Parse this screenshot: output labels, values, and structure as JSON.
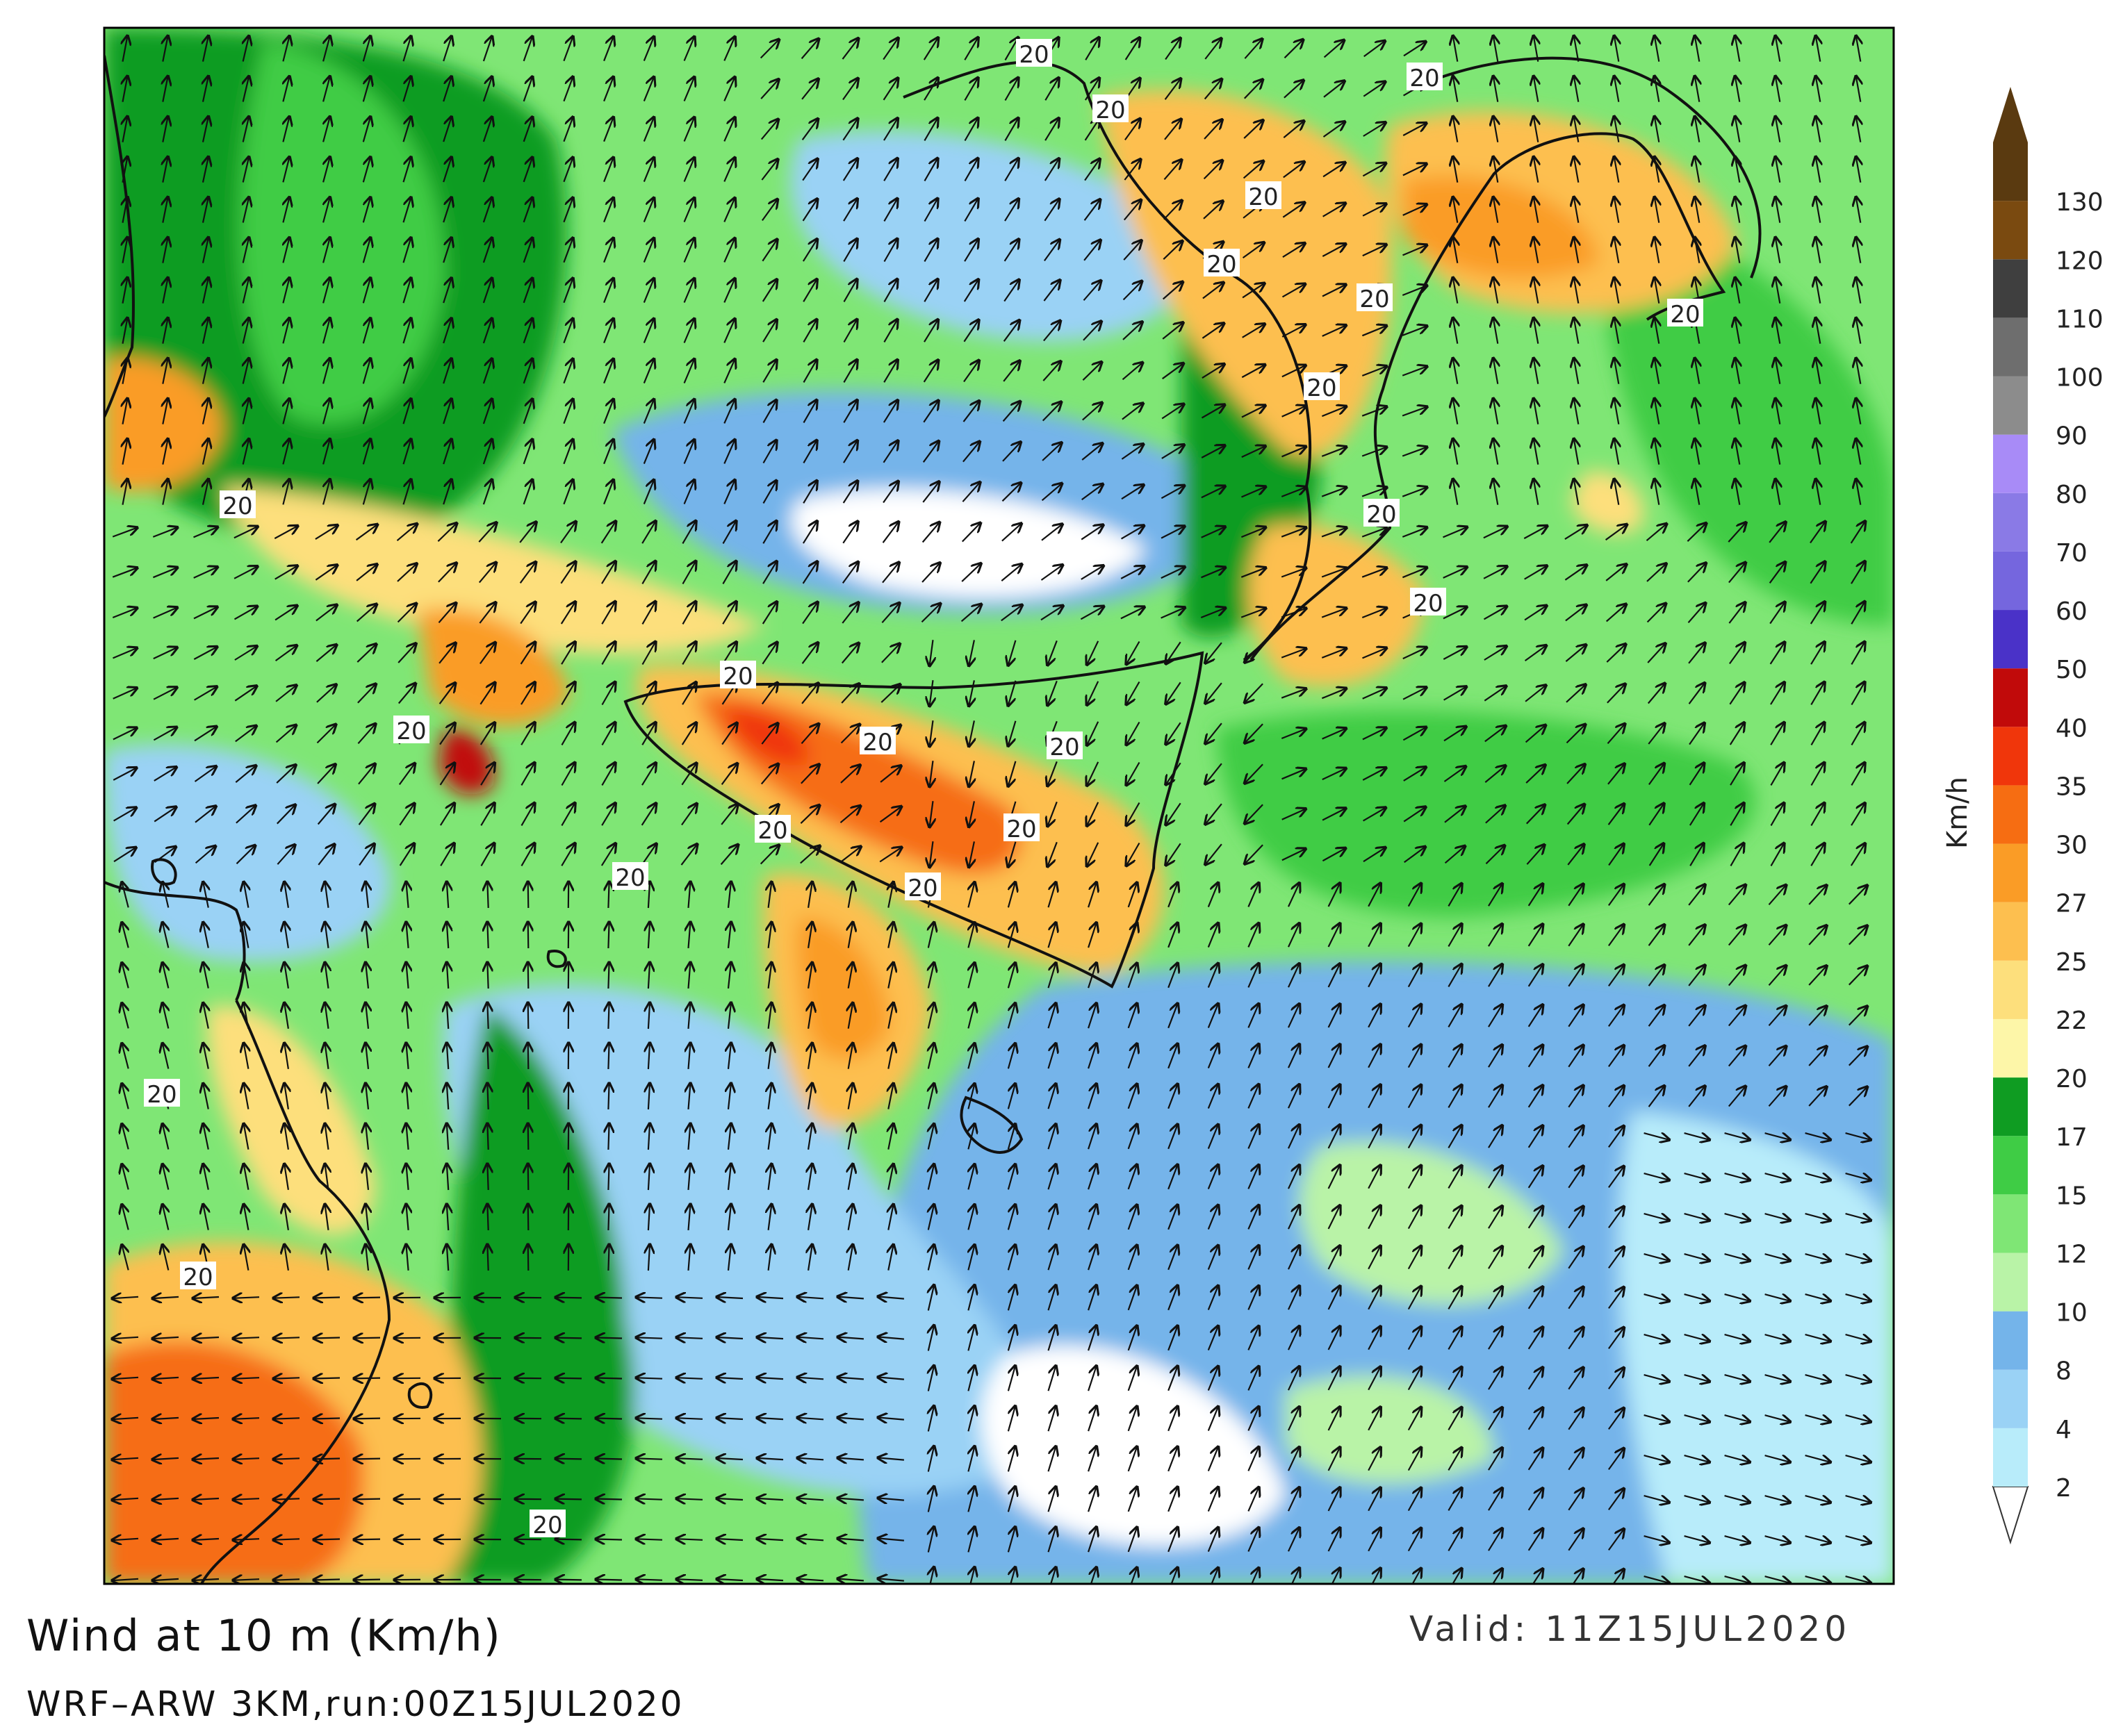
{
  "title": "Wind at 10  m  (Km/h)",
  "valid": "Valid:  11Z15JUL2020",
  "model": "WRF–ARW  3KM,run:00Z15JUL2020",
  "colorbar": {
    "unit": "Km/h",
    "levels": [
      {
        "label": "2",
        "color": "#b8ecfa"
      },
      {
        "label": "4",
        "color": "#9ad2f5"
      },
      {
        "label": "8",
        "color": "#74b4ea"
      },
      {
        "label": "10",
        "color": "#b9f3a7"
      },
      {
        "label": "12",
        "color": "#7fe675"
      },
      {
        "label": "15",
        "color": "#3fcc45"
      },
      {
        "label": "17",
        "color": "#0f9c22"
      },
      {
        "label": "20",
        "color": "#fdf6a8"
      },
      {
        "label": "22",
        "color": "#fddf7c"
      },
      {
        "label": "25",
        "color": "#fdbf4f"
      },
      {
        "label": "27",
        "color": "#fa9c26"
      },
      {
        "label": "30",
        "color": "#f66d12"
      },
      {
        "label": "35",
        "color": "#f0360b"
      },
      {
        "label": "40",
        "color": "#c10a0a"
      },
      {
        "label": "50",
        "color": "#4a32c8"
      },
      {
        "label": "60",
        "color": "#7566de"
      },
      {
        "label": "70",
        "color": "#8a7ae6"
      },
      {
        "label": "80",
        "color": "#a88bf7"
      },
      {
        "label": "90",
        "color": "#8c8c8c"
      },
      {
        "label": "100",
        "color": "#6e6e6e"
      },
      {
        "label": "110",
        "color": "#3f3f3f"
      },
      {
        "label": "120",
        "color": "#7a4a10"
      },
      {
        "label": "130",
        "color": "#5a3a10"
      }
    ],
    "under_color": "#ffffff",
    "over_color": "#5a3a10"
  },
  "contour_label": "20",
  "background_color": "#7fe675"
}
